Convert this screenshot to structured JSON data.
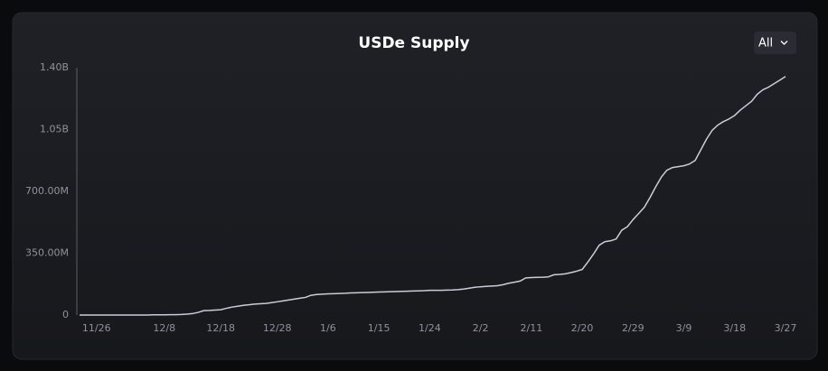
{
  "chart_data": {
    "type": "line",
    "title": "USDe Supply",
    "categories": [
      null,
      null,
      null,
      "11/26",
      null,
      null,
      null,
      null,
      null,
      null,
      null,
      null,
      null,
      null,
      null,
      "12/8",
      null,
      null,
      null,
      null,
      null,
      null,
      null,
      null,
      null,
      "12/18",
      null,
      null,
      null,
      null,
      null,
      null,
      null,
      null,
      null,
      "12/28",
      null,
      null,
      null,
      null,
      null,
      null,
      null,
      null,
      "1/6",
      null,
      null,
      null,
      null,
      null,
      null,
      null,
      null,
      "1/15",
      null,
      null,
      null,
      null,
      null,
      null,
      null,
      null,
      "1/24",
      null,
      null,
      null,
      null,
      null,
      null,
      null,
      null,
      "2/2",
      null,
      null,
      null,
      null,
      null,
      null,
      null,
      null,
      "2/11",
      null,
      null,
      null,
      null,
      null,
      null,
      null,
      null,
      "2/20",
      null,
      null,
      null,
      null,
      null,
      null,
      null,
      null,
      "2/29",
      null,
      null,
      null,
      null,
      null,
      null,
      null,
      null,
      "3/9",
      null,
      null,
      null,
      null,
      null,
      null,
      null,
      null,
      "3/18",
      null,
      null,
      null,
      null,
      null,
      null,
      null,
      null,
      "3/27"
    ],
    "values": [
      0,
      0,
      0,
      0,
      0,
      0,
      0,
      0,
      0,
      0,
      0,
      0,
      0,
      1000000,
      1000000,
      1000000,
      2000000,
      2000000,
      3000000,
      5000000,
      8000000,
      15000000,
      25000000,
      26000000,
      28000000,
      30000000,
      38000000,
      45000000,
      50000000,
      55000000,
      58000000,
      62000000,
      64000000,
      66000000,
      70000000,
      75000000,
      80000000,
      85000000,
      90000000,
      95000000,
      100000000,
      112000000,
      116000000,
      118000000,
      120000000,
      121000000,
      122000000,
      123000000,
      125000000,
      126000000,
      127000000,
      128000000,
      129000000,
      130000000,
      131000000,
      132000000,
      133000000,
      134000000,
      135000000,
      136000000,
      137000000,
      138000000,
      140000000,
      140000000,
      140000000,
      141000000,
      142000000,
      144000000,
      147000000,
      152000000,
      157000000,
      160000000,
      162000000,
      164000000,
      166000000,
      172000000,
      180000000,
      186000000,
      192000000,
      210000000,
      212000000,
      213000000,
      214000000,
      216000000,
      228000000,
      230000000,
      233000000,
      240000000,
      248000000,
      258000000,
      300000000,
      345000000,
      395000000,
      415000000,
      420000000,
      430000000,
      480000000,
      500000000,
      540000000,
      575000000,
      610000000,
      665000000,
      725000000,
      780000000,
      820000000,
      835000000,
      840000000,
      845000000,
      855000000,
      875000000,
      935000000,
      995000000,
      1045000000,
      1075000000,
      1095000000,
      1110000000,
      1130000000,
      1160000000,
      1185000000,
      1210000000,
      1250000000,
      1275000000,
      1290000000,
      1310000000,
      1330000000,
      1350000000
    ],
    "color": "#c9cdd8",
    "ylim": [
      0,
      1400000000
    ],
    "yticks": [
      0,
      {
        "value": 350000000,
        "label": "350.00M"
      },
      {
        "value": 700000000,
        "label": "700.00M"
      },
      {
        "value": 1050000000,
        "label": "1.05B"
      },
      {
        "value": 1400000000,
        "label": "1.40B"
      }
    ],
    "grid": false
  },
  "controls": {
    "range": "All"
  }
}
